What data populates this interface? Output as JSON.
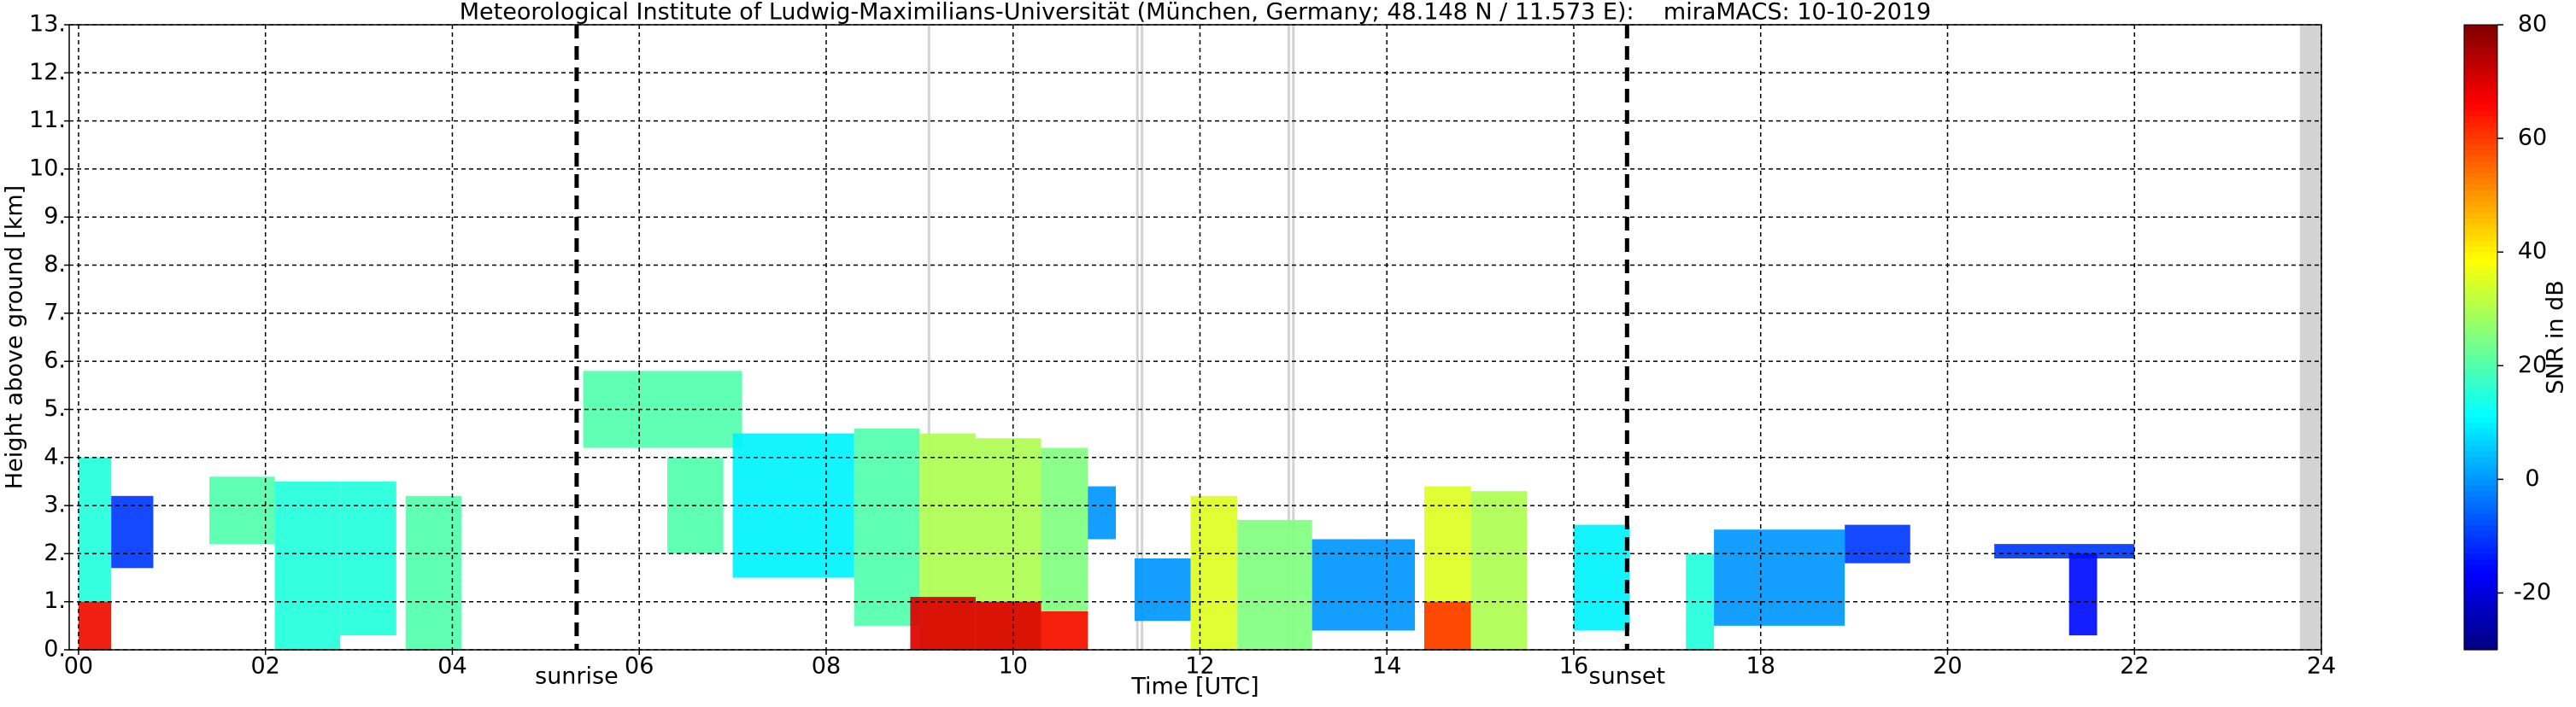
{
  "chart_data": {
    "type": "heatmap",
    "title": "Meteorological Institute of Ludwig-Maximilians-Universität (München, Germany; 48.148 N / 11.573 E):    miraMACS: 10-10-2019",
    "xlabel": "Time [UTC]",
    "ylabel": "Height above ground [km]",
    "colorbar_label": "SNR in dB",
    "xlim": [
      -0.1,
      24
    ],
    "ylim": [
      0,
      13
    ],
    "xticks": [
      {
        "value": 0,
        "label": "00"
      },
      {
        "value": 2,
        "label": "02"
      },
      {
        "value": 4,
        "label": "04"
      },
      {
        "value": 6,
        "label": "06"
      },
      {
        "value": 8,
        "label": "08"
      },
      10,
      12,
      14,
      16,
      18,
      20,
      22,
      24
    ],
    "yticks": [
      {
        "value": 0,
        "label": "0."
      },
      {
        "value": 1,
        "label": "1."
      },
      {
        "value": 2,
        "label": "2."
      },
      {
        "value": 3,
        "label": "3."
      },
      {
        "value": 4,
        "label": "4."
      },
      {
        "value": 5,
        "label": "5."
      },
      {
        "value": 6,
        "label": "6."
      },
      {
        "value": 7,
        "label": "7."
      },
      {
        "value": 8,
        "label": "8."
      },
      {
        "value": 9,
        "label": "9."
      },
      {
        "value": 10,
        "label": "10."
      },
      {
        "value": 11,
        "label": "11."
      },
      {
        "value": 12,
        "label": "12."
      },
      {
        "value": 13,
        "label": "13."
      }
    ],
    "clim": [
      -30,
      80
    ],
    "cticks": [
      -20,
      0,
      20,
      40,
      60,
      80
    ],
    "colormap": "jet",
    "grid": true,
    "annotations": [
      {
        "text": "sunrise",
        "x": 5.33
      },
      {
        "text": "sunset",
        "x": 16.57
      }
    ],
    "echoes": [
      {
        "x0": 0.0,
        "x1": 0.35,
        "base": 0,
        "top": 4.0,
        "snr": 15
      },
      {
        "x0": 0.0,
        "x1": 0.35,
        "base": 0,
        "top": 1.0,
        "snr": 65
      },
      {
        "x0": 0.35,
        "x1": 0.8,
        "base": 1.7,
        "top": 3.2,
        "snr": -10
      },
      {
        "x0": 1.4,
        "x1": 2.1,
        "base": 2.2,
        "top": 3.6,
        "snr": 20
      },
      {
        "x0": 2.1,
        "x1": 2.8,
        "base": 0,
        "top": 3.5,
        "snr": 15
      },
      {
        "x0": 2.8,
        "x1": 3.4,
        "base": 0.3,
        "top": 3.5,
        "snr": 15
      },
      {
        "x0": 3.5,
        "x1": 4.1,
        "base": 0,
        "top": 3.2,
        "snr": 20
      },
      {
        "x0": 5.4,
        "x1": 7.1,
        "base": 4.2,
        "top": 5.8,
        "snr": 20
      },
      {
        "x0": 6.3,
        "x1": 6.9,
        "base": 2.0,
        "top": 4.0,
        "snr": 20
      },
      {
        "x0": 7.0,
        "x1": 8.3,
        "base": 1.5,
        "top": 4.5,
        "snr": 10
      },
      {
        "x0": 8.3,
        "x1": 9.0,
        "base": 0.5,
        "top": 4.6,
        "snr": 20
      },
      {
        "x0": 9.0,
        "x1": 9.6,
        "base": 0,
        "top": 4.5,
        "snr": 30
      },
      {
        "x0": 8.9,
        "x1": 9.6,
        "base": 0,
        "top": 1.1,
        "snr": 70
      },
      {
        "x0": 9.6,
        "x1": 10.3,
        "base": 0,
        "top": 4.4,
        "snr": 30
      },
      {
        "x0": 9.6,
        "x1": 10.3,
        "base": 0,
        "top": 1.0,
        "snr": 70
      },
      {
        "x0": 10.3,
        "x1": 10.8,
        "base": 0,
        "top": 4.2,
        "snr": 25
      },
      {
        "x0": 10.3,
        "x1": 10.8,
        "base": 0,
        "top": 0.8,
        "snr": 65
      },
      {
        "x0": 10.8,
        "x1": 11.1,
        "base": 2.3,
        "top": 3.4,
        "snr": 0
      },
      {
        "x0": 11.3,
        "x1": 11.9,
        "base": 0.6,
        "top": 1.9,
        "snr": 0
      },
      {
        "x0": 11.9,
        "x1": 12.4,
        "base": 0,
        "top": 3.2,
        "snr": 35
      },
      {
        "x0": 12.4,
        "x1": 13.2,
        "base": 0,
        "top": 2.7,
        "snr": 25
      },
      {
        "x0": 13.2,
        "x1": 14.3,
        "base": 0.4,
        "top": 2.3,
        "snr": 0
      },
      {
        "x0": 14.4,
        "x1": 14.9,
        "base": 0,
        "top": 3.4,
        "snr": 35
      },
      {
        "x0": 14.4,
        "x1": 14.9,
        "base": 0,
        "top": 1.0,
        "snr": 60
      },
      {
        "x0": 14.9,
        "x1": 15.5,
        "base": 0,
        "top": 3.3,
        "snr": 30
      },
      {
        "x0": 16.0,
        "x1": 16.6,
        "base": 0.4,
        "top": 2.6,
        "snr": 10
      },
      {
        "x0": 17.2,
        "x1": 17.5,
        "base": 0,
        "top": 2.0,
        "snr": 15
      },
      {
        "x0": 17.5,
        "x1": 18.9,
        "base": 0.5,
        "top": 2.5,
        "snr": 0
      },
      {
        "x0": 18.9,
        "x1": 19.6,
        "base": 1.8,
        "top": 2.6,
        "snr": -10
      },
      {
        "x0": 20.5,
        "x1": 22.0,
        "base": 1.9,
        "top": 2.2,
        "snr": -10
      },
      {
        "x0": 21.3,
        "x1": 21.6,
        "base": 0.3,
        "top": 2.0,
        "snr": -15
      }
    ]
  }
}
